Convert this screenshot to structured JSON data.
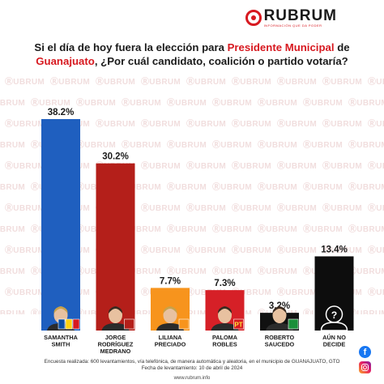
{
  "brand": {
    "name": "RUBRUM",
    "tagline": "INFORMACIÓN QUE DA PODER",
    "color": "#d71920"
  },
  "watermark_text": "RUBRUM",
  "title": {
    "part1": "Si el día de hoy fuera la elección para ",
    "highlight1": "Presidente Municipal",
    "part2": " de",
    "highlight2": "Guanajuato",
    "part3": ", ¿Por cuál candidato, coalición o partido votaría?"
  },
  "chart_data": {
    "type": "bar",
    "categories": [
      "SAMANTHA SMITH",
      "JORGE RODRÍGUEZ MEDRANO",
      "LILIANA PRECIADO",
      "PALOMA ROBLES",
      "ROBERTO SAUCEDO",
      "AÚN NO DECIDE"
    ],
    "category_lines": [
      [
        "SAMANTHA",
        "SMITH"
      ],
      [
        "JORGE",
        "RODRÍGUEZ",
        "MEDRANO"
      ],
      [
        "LILIANA",
        "PRECIADO"
      ],
      [
        "PALOMA",
        "ROBLES"
      ],
      [
        "ROBERTO",
        "SAUCEDO"
      ],
      [
        "AÚN NO",
        "DECIDE"
      ]
    ],
    "values": [
      38.2,
      30.2,
      7.7,
      7.3,
      3.2,
      13.4
    ],
    "value_labels": [
      "38.2%",
      "30.2%",
      "7.7%",
      "7.3%",
      "3.2%",
      "13.4%"
    ],
    "colors": [
      "#1f5fbf",
      "#b41f1a",
      "#f7941d",
      "#d62027",
      "#111111",
      "#0d0d0d"
    ],
    "unit": "%",
    "ylim": [
      0,
      38.2
    ],
    "grid": false,
    "legend": "none",
    "party_badges": [
      [
        {
          "text": "",
          "color": "#0a4da2"
        },
        {
          "text": "",
          "color": "#fdd20e"
        },
        {
          "text": "",
          "color": "#d71920"
        }
      ],
      [
        {
          "text": "",
          "color": "#b41f1a"
        }
      ],
      [
        {
          "text": "",
          "color": "#f7941d"
        }
      ],
      [
        {
          "text": "PT",
          "color": "#d71920"
        }
      ],
      [
        {
          "text": "",
          "color": "#1b8f3a"
        }
      ],
      [
        {
          "text": "?",
          "color": "#ffffff"
        }
      ]
    ]
  },
  "footer": {
    "line1": "Encuesta realizada: 600 levantamientos, vía telefónica, de manera automática y aleatoria, en el municipio de GUANAJUATO, GTO",
    "line2": "Fecha de levantamiento: 10 de abril de 2024"
  },
  "url": "www.rubrum.info",
  "social": {
    "facebook_icon": "facebook-icon",
    "instagram_icon": "instagram-icon"
  }
}
